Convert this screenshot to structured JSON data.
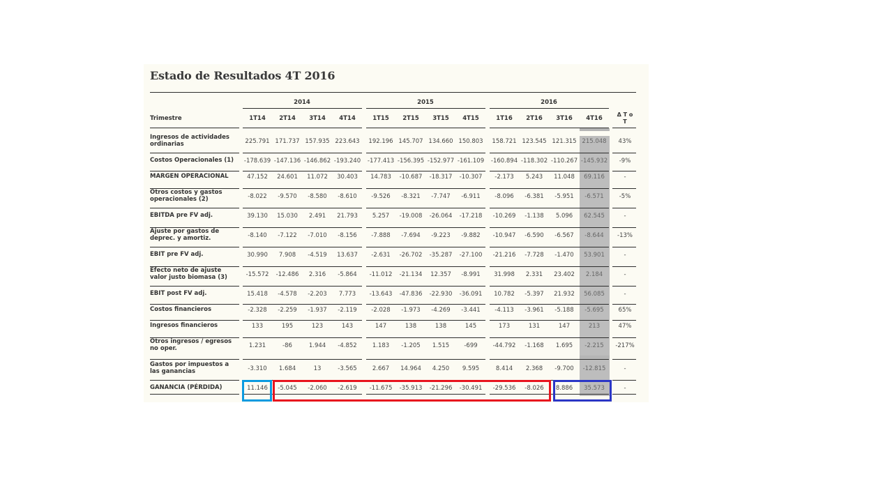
{
  "title": "Estado de Resultados 4T 2016",
  "years": [
    "2014",
    "2015",
    "2016"
  ],
  "header_label": "Trimestre",
  "quarters": [
    "1T14",
    "2T14",
    "3T14",
    "4T14",
    "1T15",
    "2T15",
    "3T15",
    "4T15",
    "1T16",
    "2T16",
    "3T16",
    "4T16"
  ],
  "delta_label": "Δ T o T",
  "rows": [
    {
      "label": "Ingresos de actividades ordinarias",
      "values": [
        "225.791",
        "171.737",
        "157.935",
        "223.643",
        "192.196",
        "145.707",
        "134.660",
        "150.803",
        "158.721",
        "123.545",
        "121.315",
        "215.048"
      ],
      "delta": "43%"
    },
    {
      "label": "Costos Operacionales (1)",
      "values": [
        "-178.639",
        "-147.136",
        "-146.862",
        "-193.240",
        "-177.413",
        "-156.395",
        "-152.977",
        "-161.109",
        "-160.894",
        "-118.302",
        "-110.267",
        "-145.932"
      ],
      "delta": "-9%"
    },
    {
      "label": "MARGEN OPERACIONAL",
      "values": [
        "47.152",
        "24.601",
        "11.072",
        "30.403",
        "14.783",
        "-10.687",
        "-18.317",
        "-10.307",
        "-2.173",
        "5.243",
        "11.048",
        "69.116"
      ],
      "delta": "-"
    },
    {
      "label": "Otros costos y gastos operacionales (2)",
      "values": [
        "-8.022",
        "-9.570",
        "-8.580",
        "-8.610",
        "-9.526",
        "-8.321",
        "-7.747",
        "-6.911",
        "-8.096",
        "-6.381",
        "-5.951",
        "-6.571"
      ],
      "delta": "-5%"
    },
    {
      "label": "EBITDA pre FV adj.",
      "values": [
        "39.130",
        "15.030",
        "2.491",
        "21.793",
        "5.257",
        "-19.008",
        "-26.064",
        "-17.218",
        "-10.269",
        "-1.138",
        "5.096",
        "62.545"
      ],
      "delta": "-"
    },
    {
      "label": "Ajuste por gastos de deprec. y amortiz.",
      "values": [
        "-8.140",
        "-7.122",
        "-7.010",
        "-8.156",
        "-7.888",
        "-7.694",
        "-9.223",
        "-9.882",
        "-10.947",
        "-6.590",
        "-6.567",
        "-8.644"
      ],
      "delta": "-13%"
    },
    {
      "label": "EBIT pre FV adj.",
      "values": [
        "30.990",
        "7.908",
        "-4.519",
        "13.637",
        "-2.631",
        "-26.702",
        "-35.287",
        "-27.100",
        "-21.216",
        "-7.728",
        "-1.470",
        "53.901"
      ],
      "delta": "-"
    },
    {
      "label": "Efecto neto de ajuste valor justo biomasa (3)",
      "values": [
        "-15.572",
        "-12.486",
        "2.316",
        "-5.864",
        "-11.012",
        "-21.134",
        "12.357",
        "-8.991",
        "31.998",
        "2.331",
        "23.402",
        "2.184"
      ],
      "delta": "-"
    },
    {
      "label": "EBIT post FV adj.",
      "values": [
        "15.418",
        "-4.578",
        "-2.203",
        "7.773",
        "-13.643",
        "-47.836",
        "-22.930",
        "-36.091",
        "10.782",
        "-5.397",
        "21.932",
        "56.085"
      ],
      "delta": "-"
    },
    {
      "label": "Costos financieros",
      "values": [
        "-2.328",
        "-2.259",
        "-1.937",
        "-2.119",
        "-2.028",
        "-1.973",
        "-4.269",
        "-3.441",
        "-4.113",
        "-3.961",
        "-5.188",
        "-5.695"
      ],
      "delta": "65%"
    },
    {
      "label": "Ingresos financieros",
      "values": [
        "133",
        "195",
        "123",
        "143",
        "147",
        "138",
        "138",
        "145",
        "173",
        "131",
        "147",
        "213"
      ],
      "delta": "47%"
    },
    {
      "label": "Otros ingresos / egresos no oper.",
      "values": [
        "1.231",
        "-86",
        "1.944",
        "-4.852",
        "1.183",
        "-1.205",
        "1.515",
        "-699",
        "-44.792",
        "-1.168",
        "1.695",
        "-2.215"
      ],
      "delta": "-217%"
    },
    {
      "label": "Gastos por impuestos a las ganancias",
      "values": [
        "-3.310",
        "1.684",
        "13",
        "-3.565",
        "2.667",
        "14.964",
        "4.250",
        "9.595",
        "8.414",
        "2.368",
        "-9.700",
        "-12.815"
      ],
      "delta": "-"
    },
    {
      "label": "GANANCIA (PÉRDIDA)",
      "values": [
        "11.146",
        "-5.045",
        "-2.060",
        "-2.619",
        "-11.675",
        "-35.913",
        "-21.296",
        "-30.491",
        "-29.536",
        "-8.026",
        "8.886",
        "35.573"
      ],
      "delta": "-"
    }
  ],
  "colors": {
    "box_blue": "#0b9be0",
    "box_red": "#e8141e",
    "box_navy": "#2b36c6",
    "highlight": "#bdbdbd"
  }
}
